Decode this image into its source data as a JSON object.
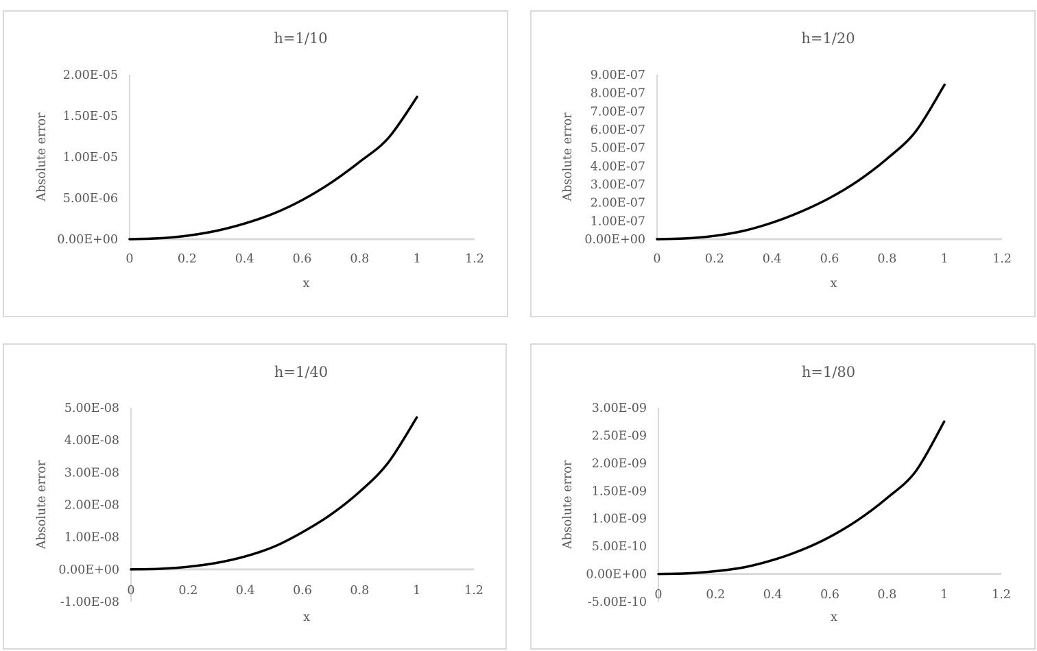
{
  "chart_data": [
    {
      "type": "line",
      "title": "h=1/10",
      "xlabel": "x",
      "ylabel": "Absolute error",
      "xlim": [
        0,
        1.2
      ],
      "ylim": [
        0,
        2e-05
      ],
      "x_ticks": [
        "0",
        "0.2",
        "0.4",
        "0.6",
        "0.8",
        "1",
        "1.2"
      ],
      "y_ticks": [
        "0.00E+00",
        "5.00E-06",
        "1.00E-05",
        "1.50E-05",
        "2.00E-05"
      ],
      "grid": false,
      "series": [
        {
          "x": [
            0,
            0.1,
            0.2,
            0.3,
            0.4,
            0.5,
            0.6,
            0.7,
            0.8,
            0.9,
            1.0
          ],
          "y": [
            0,
            1e-07,
            4.2e-07,
            1e-06,
            1.9e-06,
            3.1e-06,
            4.75e-06,
            6.85e-06,
            9.4e-06,
            1.23e-05,
            1.73e-05
          ]
        }
      ]
    },
    {
      "type": "line",
      "title": "h=1/20",
      "xlabel": "x",
      "ylabel": "Absolute error",
      "xlim": [
        0,
        1.2
      ],
      "ylim": [
        0,
        9e-07
      ],
      "x_ticks": [
        "0",
        "0.2",
        "0.4",
        "0.6",
        "0.8",
        "1",
        "1.2"
      ],
      "y_ticks": [
        "0.00E+00",
        "1.00E-07",
        "2.00E-07",
        "3.00E-07",
        "4.00E-07",
        "5.00E-07",
        "6.00E-07",
        "7.00E-07",
        "8.00E-07",
        "9.00E-07"
      ],
      "grid": false,
      "series": [
        {
          "x": [
            0,
            0.1,
            0.2,
            0.3,
            0.4,
            0.5,
            0.6,
            0.7,
            0.8,
            0.9,
            1.0
          ],
          "y": [
            0,
            4e-09,
            1.8e-08,
            4.5e-08,
            9e-08,
            1.5e-07,
            2.25e-07,
            3.2e-07,
            4.4e-07,
            5.9e-07,
            8.45e-07
          ]
        }
      ]
    },
    {
      "type": "line",
      "title": "h=1/40",
      "xlabel": "x",
      "ylabel": "Absolute error",
      "xlim": [
        0,
        1.2
      ],
      "ylim": [
        -1e-08,
        5e-08
      ],
      "x_ticks": [
        "0",
        "0.2",
        "0.4",
        "0.6",
        "0.8",
        "1",
        "1.2"
      ],
      "y_ticks": [
        "-1.00E-08",
        "0.00E+00",
        "1.00E-08",
        "2.00E-08",
        "3.00E-08",
        "4.00E-08",
        "5.00E-08"
      ],
      "grid": false,
      "series": [
        {
          "x": [
            0,
            0.1,
            0.2,
            0.3,
            0.4,
            0.5,
            0.6,
            0.7,
            0.8,
            0.9,
            1.0
          ],
          "y": [
            0,
            1.5e-10,
            8e-10,
            2e-09,
            4e-09,
            7e-09,
            1.15e-08,
            1.7e-08,
            2.4e-08,
            3.3e-08,
            4.7e-08
          ]
        }
      ]
    },
    {
      "type": "line",
      "title": "h=1/80",
      "xlabel": "x",
      "ylabel": "Absolute error",
      "xlim": [
        0,
        1.2
      ],
      "ylim": [
        -5e-10,
        3e-09
      ],
      "x_ticks": [
        "0",
        "0.2",
        "0.4",
        "0.6",
        "0.8",
        "1",
        "1.2"
      ],
      "y_ticks": [
        "-5.00E-10",
        "0.00E+00",
        "5.00E-10",
        "1.00E-09",
        "1.50E-09",
        "2.00E-09",
        "2.50E-09",
        "3.00E-09"
      ],
      "grid": false,
      "series": [
        {
          "x": [
            0,
            0.1,
            0.2,
            0.3,
            0.4,
            0.5,
            0.6,
            0.7,
            0.8,
            0.9,
            1.0
          ],
          "y": [
            0,
            1e-11,
            5e-11,
            1.2e-10,
            2.5e-10,
            4.3e-10,
            6.7e-10,
            9.8e-10,
            1.37e-09,
            1.85e-09,
            2.75e-09
          ]
        }
      ]
    }
  ]
}
